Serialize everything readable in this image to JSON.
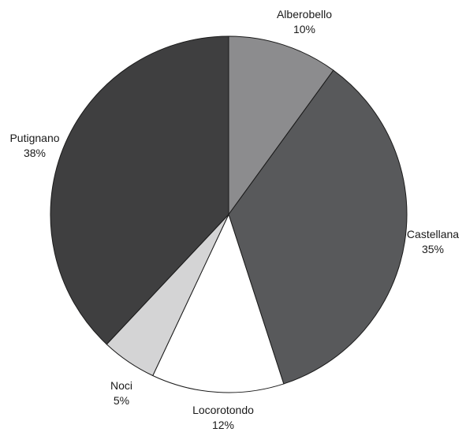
{
  "chart_data": {
    "type": "pie",
    "title": "",
    "start_angle_deg": 0,
    "direction": "clockwise",
    "slices": [
      {
        "label": "Alberobello",
        "value": 10,
        "value_label": "10%",
        "color": "#8c8c8e"
      },
      {
        "label": "Castellana",
        "value": 35,
        "value_label": "35%",
        "color": "#58595b"
      },
      {
        "label": "Locorotondo",
        "value": 12,
        "value_label": "12%",
        "color": "#ffffff"
      },
      {
        "label": "Noci",
        "value": 5,
        "value_label": "5%",
        "color": "#d4d4d5"
      },
      {
        "label": "Putignano",
        "value": 38,
        "value_label": "38%",
        "color": "#3f3f40"
      }
    ]
  }
}
